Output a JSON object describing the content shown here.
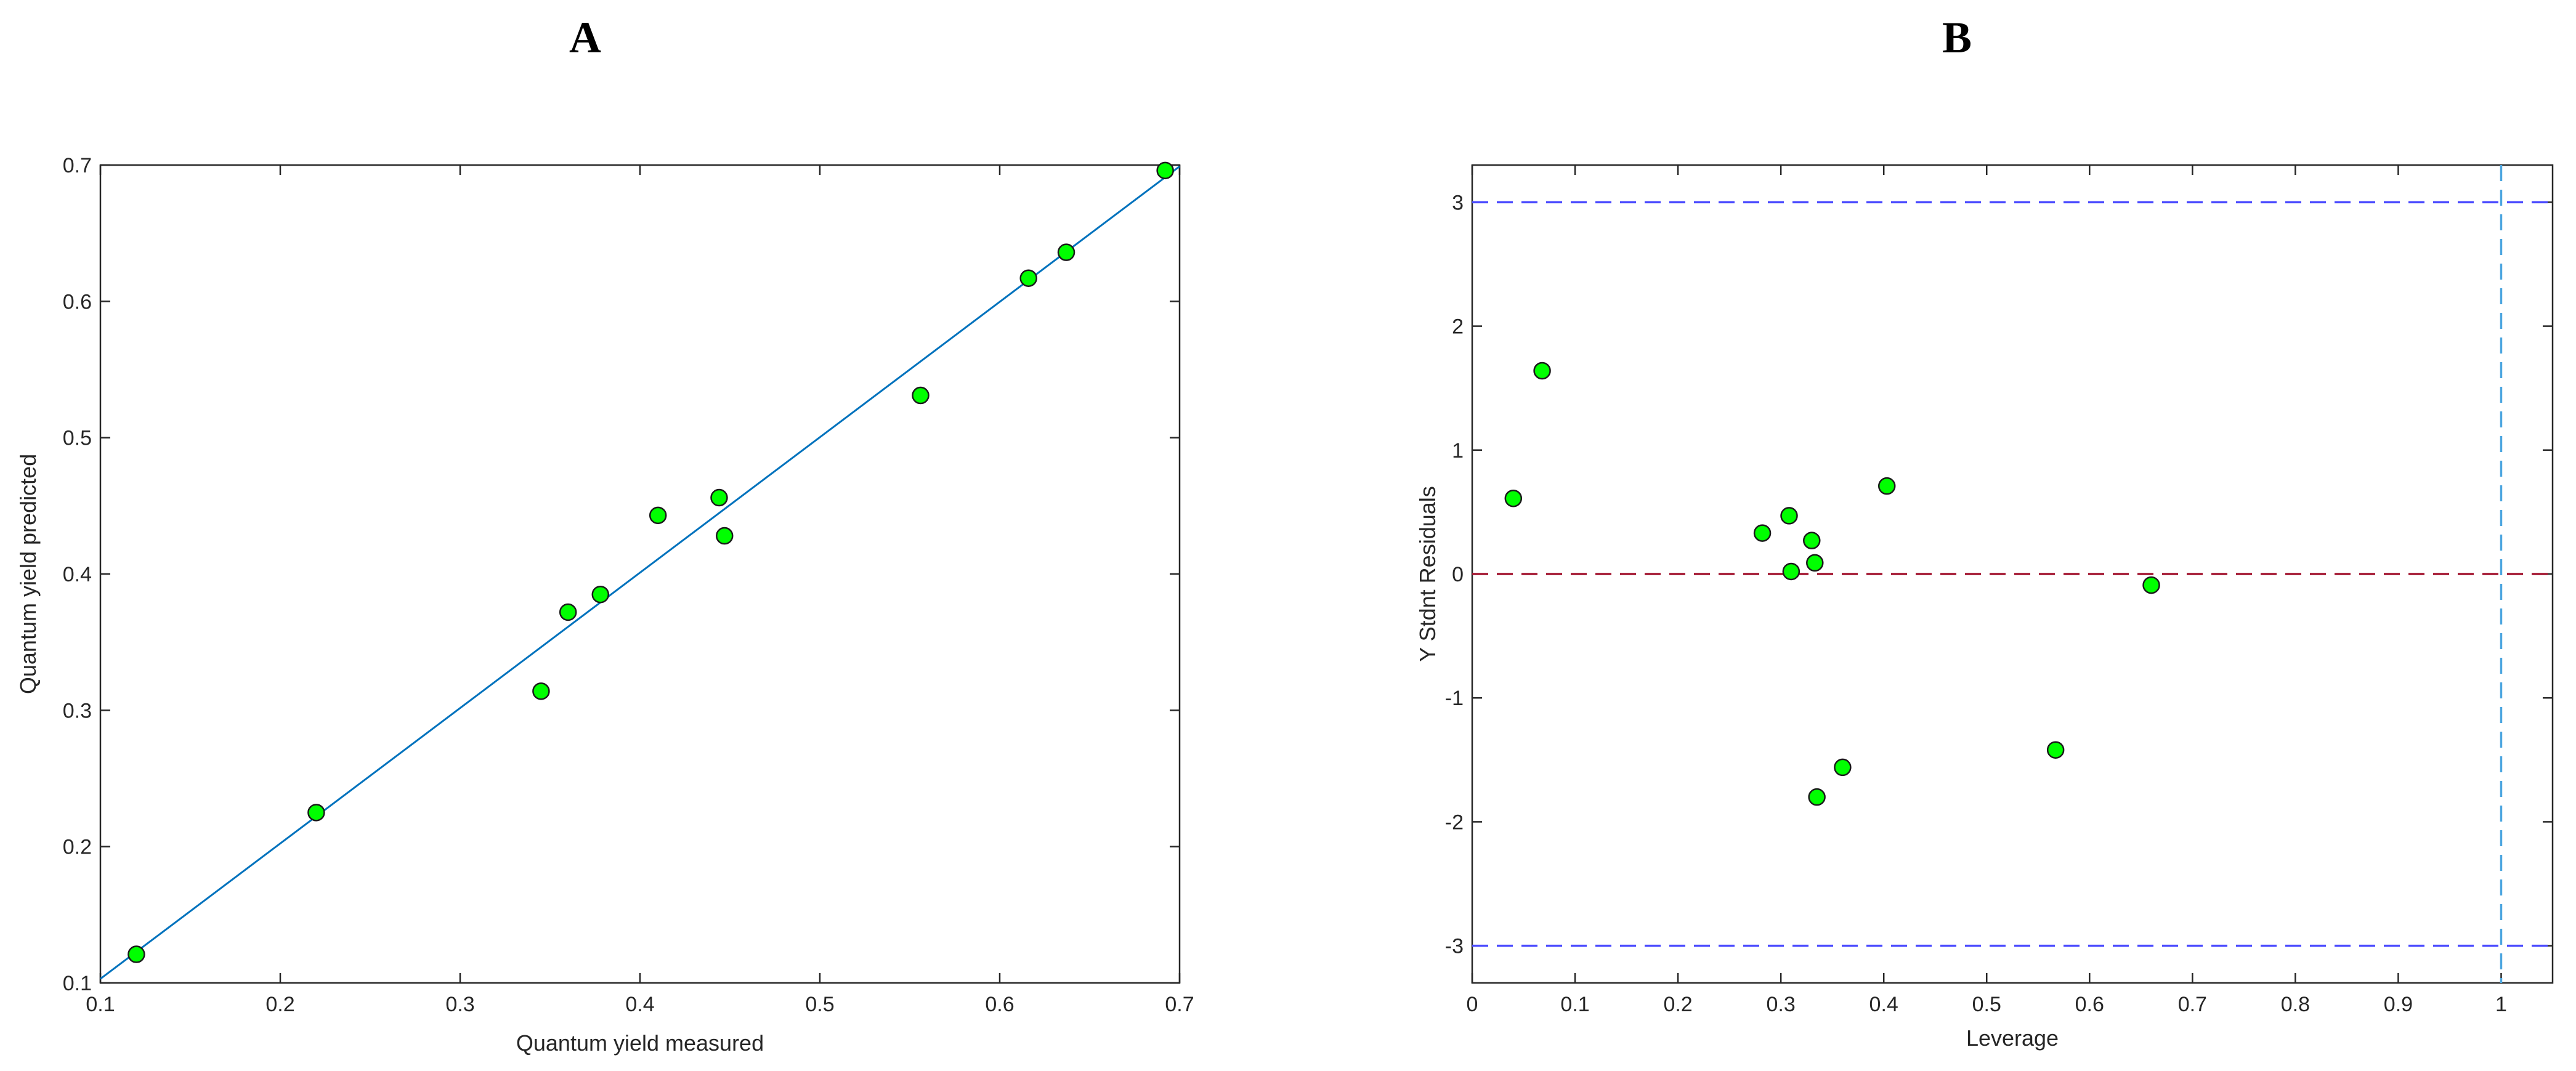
{
  "panels": [
    {
      "letter": "A",
      "chart_data": {
        "type": "scatter",
        "title": "",
        "xlabel": "Quantum yield measured",
        "ylabel": "Quantum yield predicted",
        "xlim": [
          0.1,
          0.7
        ],
        "ylim": [
          0.1,
          0.7
        ],
        "xticks": [
          0.1,
          0.2,
          0.3,
          0.4,
          0.5,
          0.6,
          0.7
        ],
        "yticks": [
          0.1,
          0.2,
          0.3,
          0.4,
          0.5,
          0.6,
          0.7
        ],
        "xtick_labels": [
          "0.1",
          "0.2",
          "0.3",
          "0.4",
          "0.5",
          "0.6",
          "0.7"
        ],
        "ytick_labels": [
          "0.1",
          "0.2",
          "0.3",
          "0.4",
          "0.5",
          "0.6",
          "0.7"
        ],
        "grid": false,
        "points": [
          {
            "x": 0.12,
            "y": 0.121
          },
          {
            "x": 0.22,
            "y": 0.225
          },
          {
            "x": 0.345,
            "y": 0.314
          },
          {
            "x": 0.36,
            "y": 0.372
          },
          {
            "x": 0.378,
            "y": 0.385
          },
          {
            "x": 0.41,
            "y": 0.443
          },
          {
            "x": 0.444,
            "y": 0.456
          },
          {
            "x": 0.447,
            "y": 0.428
          },
          {
            "x": 0.556,
            "y": 0.531
          },
          {
            "x": 0.616,
            "y": 0.617
          },
          {
            "x": 0.637,
            "y": 0.636
          },
          {
            "x": 0.692,
            "y": 0.696
          }
        ],
        "fit_line": {
          "x": [
            0.1,
            0.7
          ],
          "y": [
            0.103,
            0.699
          ]
        },
        "colors": {
          "marker": "#00ff00",
          "line": "#0072bd"
        }
      }
    },
    {
      "letter": "B",
      "chart_data": {
        "type": "scatter",
        "title": "",
        "xlabel": "Leverage",
        "ylabel": "Y Stdnt Residuals",
        "xlim": [
          0,
          1.05
        ],
        "ylim": [
          -3.3,
          3.3
        ],
        "xticks": [
          0,
          0.1,
          0.2,
          0.3,
          0.4,
          0.5,
          0.6,
          0.7,
          0.8,
          0.9,
          1
        ],
        "yticks": [
          -3,
          -2,
          -1,
          0,
          1,
          2,
          3
        ],
        "xtick_labels": [
          "0",
          "0.1",
          "0.2",
          "0.3",
          "0.4",
          "0.5",
          "0.6",
          "0.7",
          "0.8",
          "0.9",
          "1"
        ],
        "ytick_labels": [
          "-3",
          "-2",
          "-1",
          "0",
          "1",
          "2",
          "3"
        ],
        "grid": false,
        "points": [
          {
            "x": 0.04,
            "y": 0.61
          },
          {
            "x": 0.068,
            "y": 1.64
          },
          {
            "x": 0.282,
            "y": 0.33
          },
          {
            "x": 0.308,
            "y": 0.47
          },
          {
            "x": 0.31,
            "y": 0.02
          },
          {
            "x": 0.33,
            "y": 0.27
          },
          {
            "x": 0.333,
            "y": 0.09
          },
          {
            "x": 0.335,
            "y": -1.8
          },
          {
            "x": 0.36,
            "y": -1.56
          },
          {
            "x": 0.403,
            "y": 0.71
          },
          {
            "x": 0.567,
            "y": -1.42
          },
          {
            "x": 0.66,
            "y": -0.09
          }
        ],
        "reference_lines": {
          "horizontal_limits": [
            3,
            -3
          ],
          "horizontal_zero": 0,
          "vertical_leverage": 1
        },
        "colors": {
          "marker": "#00ff00",
          "limit_lines": "#4a4aff",
          "zero_line": "#a2142f",
          "leverage_line": "#4da6e0"
        }
      }
    }
  ]
}
